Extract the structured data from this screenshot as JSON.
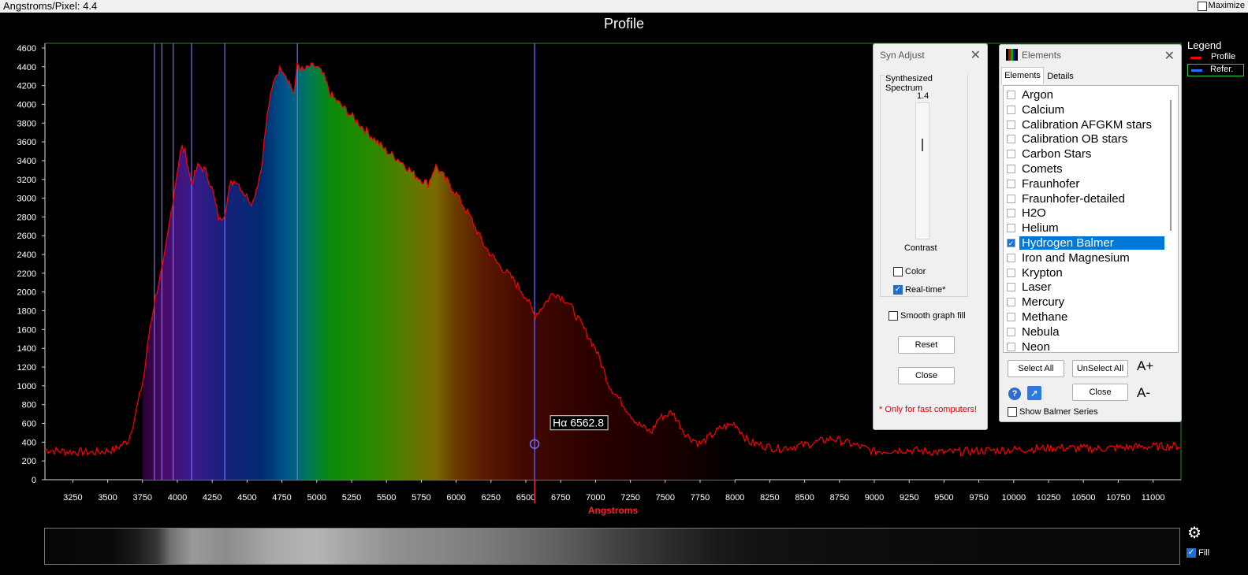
{
  "header": {
    "angstroms_per_pixel_label": "Angstroms/Pixel:",
    "angstroms_per_pixel_value": "4.4",
    "maximize_label": "Maximize",
    "maximize_checked": false
  },
  "title": "Profile",
  "legend": {
    "title": "Legend",
    "items": [
      {
        "label": "Profile",
        "color": "#ff0000"
      },
      {
        "label": "Refer.",
        "color": "#1e78ff"
      }
    ]
  },
  "chart_data": {
    "type": "area",
    "xlabel": "Angstroms",
    "ylabel": "",
    "xlim": [
      3050,
      11200
    ],
    "ylim": [
      0,
      4650
    ],
    "x_ticks": [
      3250,
      3500,
      3750,
      4000,
      4250,
      4500,
      4750,
      5000,
      5250,
      5500,
      5750,
      6000,
      6250,
      6500,
      6750,
      7000,
      7250,
      7500,
      7750,
      8000,
      8250,
      8500,
      8750,
      9000,
      9250,
      9500,
      9750,
      10000,
      10250,
      10500,
      10750,
      11000
    ],
    "y_ticks": [
      0,
      200,
      400,
      600,
      800,
      1000,
      1200,
      1400,
      1600,
      1800,
      2000,
      2200,
      2400,
      2600,
      2800,
      3000,
      3200,
      3400,
      3600,
      3800,
      4000,
      4200,
      4400,
      4600
    ],
    "series": [
      {
        "name": "Profile",
        "color": "#ff0000",
        "x": [
          3050,
          3200,
          3400,
          3550,
          3650,
          3700,
          3760,
          3800,
          3850,
          3900,
          3950,
          4000,
          4030,
          4060,
          4100,
          4150,
          4200,
          4250,
          4300,
          4340,
          4380,
          4420,
          4480,
          4540,
          4600,
          4650,
          4700,
          4750,
          4800,
          4840,
          4861,
          4900,
          4950,
          5000,
          5050,
          5100,
          5200,
          5300,
          5400,
          5500,
          5600,
          5700,
          5800,
          5850,
          5900,
          6000,
          6100,
          6200,
          6300,
          6400,
          6500,
          6563,
          6620,
          6700,
          6800,
          6900,
          7000,
          7100,
          7200,
          7300,
          7400,
          7450,
          7550,
          7650,
          7750,
          7900,
          8000,
          8100,
          8300,
          8500,
          8700,
          8900,
          9000,
          9200,
          9500,
          9800,
          10000,
          10300,
          10600,
          10900,
          11200
        ],
        "y": [
          320,
          300,
          290,
          320,
          420,
          700,
          1100,
          1600,
          2000,
          2300,
          2800,
          3300,
          3550,
          3480,
          3150,
          3350,
          3300,
          3100,
          2750,
          2850,
          3150,
          3200,
          3050,
          2950,
          3300,
          3950,
          4300,
          4400,
          4250,
          4100,
          4450,
          4350,
          4400,
          4400,
          4300,
          4100,
          3950,
          3800,
          3650,
          3500,
          3400,
          3250,
          3150,
          3350,
          3250,
          3050,
          2800,
          2500,
          2300,
          2150,
          1950,
          1750,
          1850,
          2000,
          1900,
          1650,
          1400,
          1000,
          800,
          600,
          500,
          650,
          720,
          480,
          380,
          550,
          600,
          400,
          330,
          370,
          440,
          350,
          300,
          320,
          290,
          310,
          320,
          340,
          330,
          350,
          360
        ]
      }
    ],
    "reference_lines": {
      "color": "#6f6fff",
      "x": [
        3835,
        3889,
        3970,
        4102,
        4340,
        4861,
        6563
      ]
    },
    "annotations": [
      {
        "text": "Hα  6562.8",
        "x": 6562.8,
        "y": 380
      }
    ],
    "grid": false,
    "legend_position": "top-right"
  },
  "syn_adjust": {
    "title": "Syn Adjust",
    "group_title": "Synthesized Spectrum",
    "contrast_value": "1.4",
    "contrast_level": 0.3,
    "contrast_label": "Contrast",
    "color_label": "Color",
    "color_checked": false,
    "realtime_label": "Real-time*",
    "realtime_checked": true,
    "smooth_fill_label": "Smooth graph fill",
    "smooth_fill_checked": false,
    "reset_label": "Reset",
    "close_label": "Close",
    "note": "* Only for fast computers!"
  },
  "elements": {
    "title": "Elements",
    "tabs": [
      "Elements",
      "Details"
    ],
    "items": [
      {
        "label": "Argon",
        "checked": false
      },
      {
        "label": "Calcium",
        "checked": false
      },
      {
        "label": "Calibration AFGKM stars",
        "checked": false
      },
      {
        "label": "Calibration OB stars",
        "checked": false
      },
      {
        "label": "Carbon Stars",
        "checked": false
      },
      {
        "label": "Comets",
        "checked": false
      },
      {
        "label": "Fraunhofer",
        "checked": false
      },
      {
        "label": "Fraunhofer-detailed",
        "checked": false
      },
      {
        "label": "H2O",
        "checked": false
      },
      {
        "label": "Helium",
        "checked": false
      },
      {
        "label": "Hydrogen Balmer",
        "checked": true,
        "selected": true
      },
      {
        "label": "Iron and Magnesium",
        "checked": false
      },
      {
        "label": "Krypton",
        "checked": false
      },
      {
        "label": "Laser",
        "checked": false
      },
      {
        "label": "Mercury",
        "checked": false
      },
      {
        "label": "Methane",
        "checked": false
      },
      {
        "label": "Nebula",
        "checked": false
      },
      {
        "label": "Neon",
        "checked": false
      }
    ],
    "select_all_label": "Select All",
    "unselect_all_label": "UnSelect All",
    "font_bigger_label": "A+",
    "font_smaller_label": "A-",
    "close_label": "Close",
    "show_balmer_label": "Show Balmer Series",
    "show_balmer_checked": false
  },
  "bottom": {
    "fill_label": "Fill",
    "fill_checked": true
  }
}
